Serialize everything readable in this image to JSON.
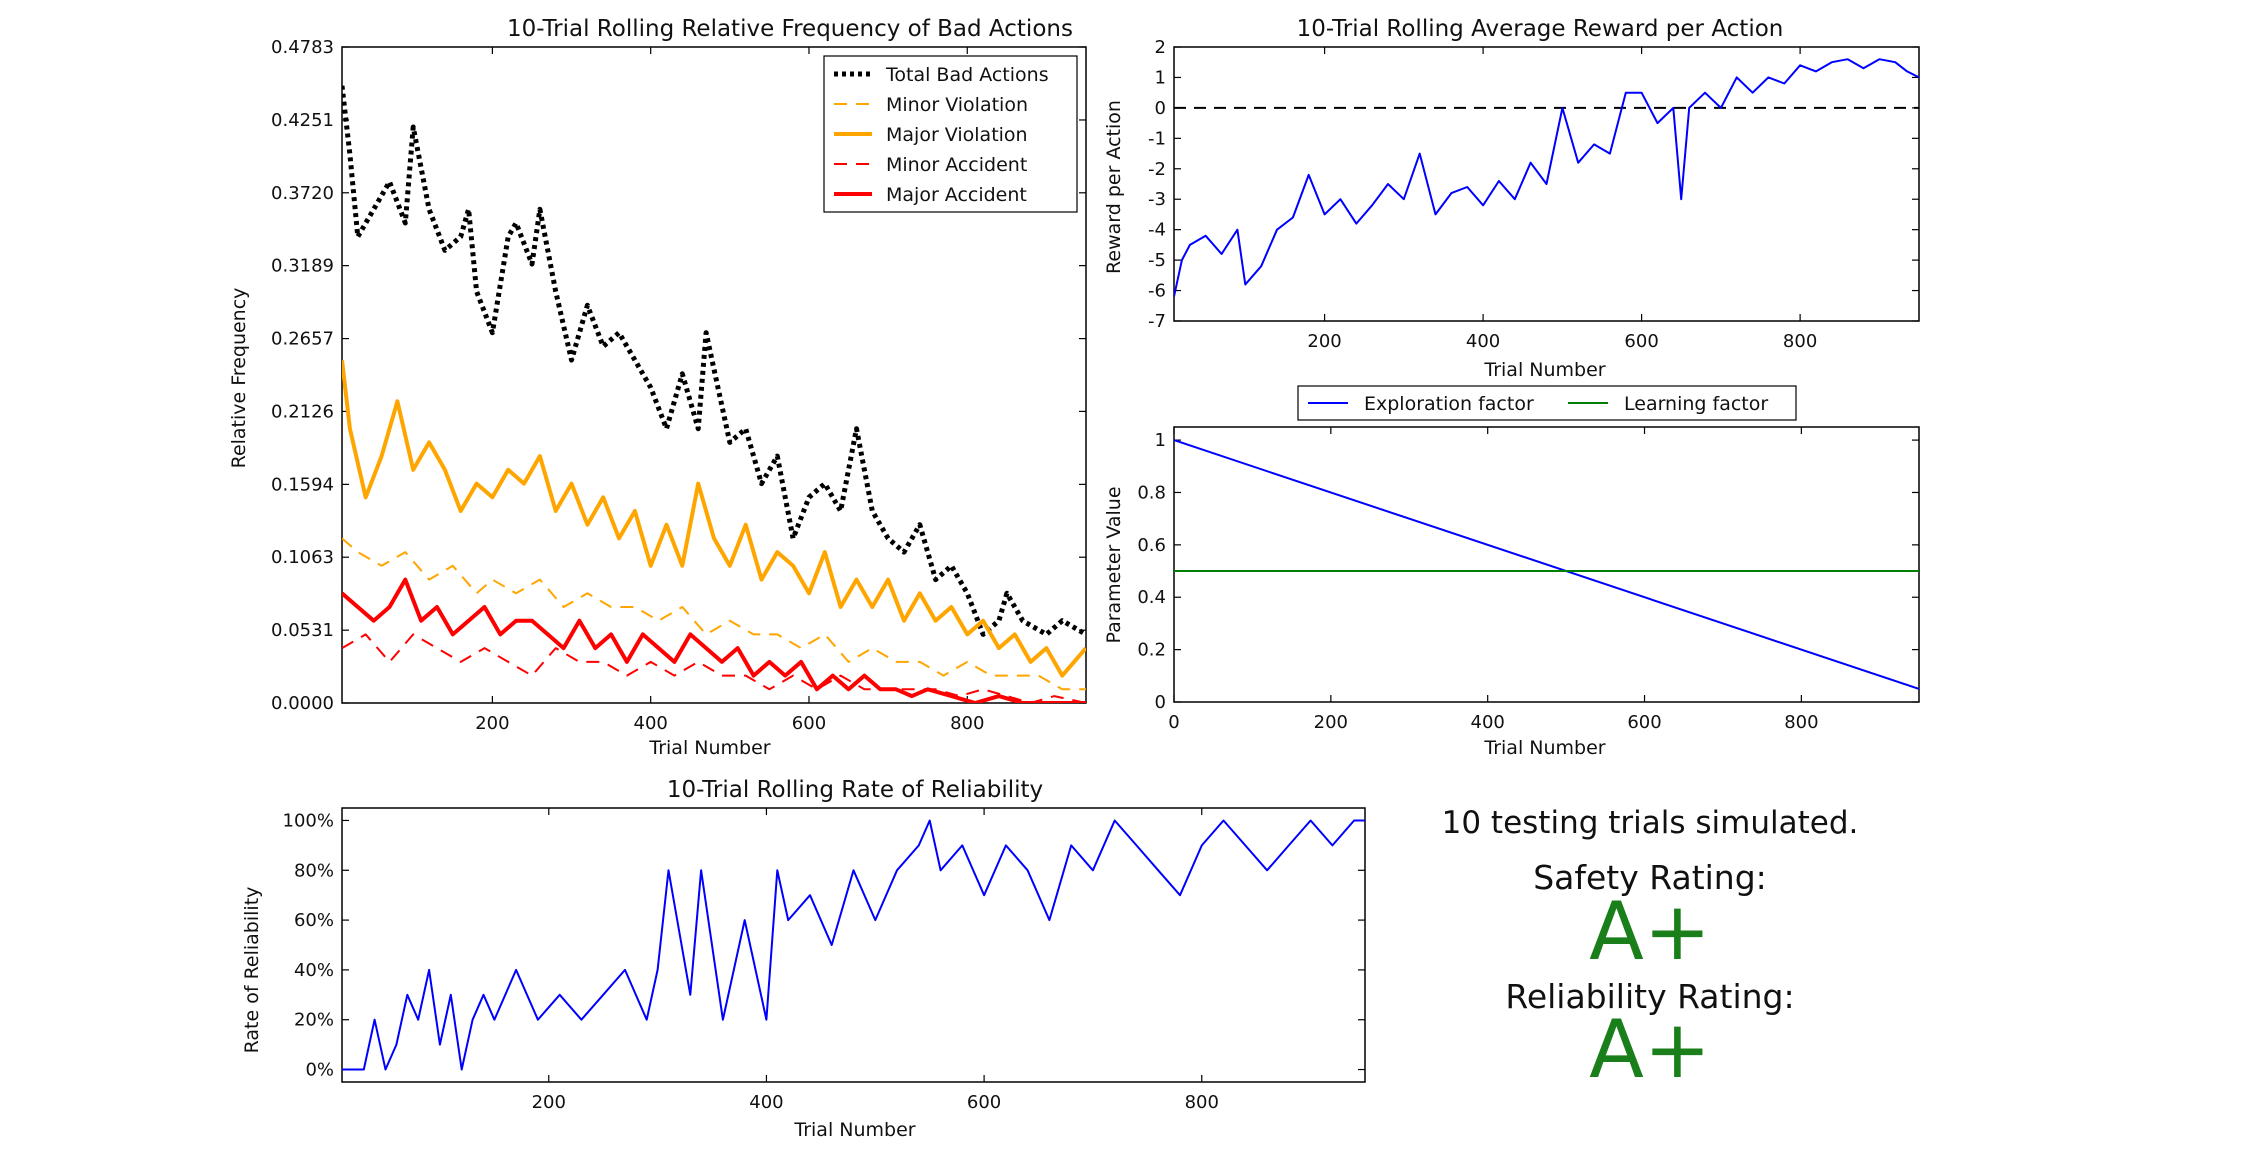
{
  "chart_data": [
    {
      "type": "line",
      "title": "10-Trial Rolling Relative Frequency of Bad Actions",
      "xlabel": "Trial Number",
      "ylabel": "Relative Frequency",
      "xlim": [
        10,
        950
      ],
      "ylim": [
        0.0,
        0.4783
      ],
      "xticks": [
        200,
        400,
        600,
        800
      ],
      "yticks": [
        0.0,
        0.0531,
        0.1063,
        0.1594,
        0.2126,
        0.2657,
        0.3189,
        0.372,
        0.4251,
        0.4783
      ],
      "ytick_labels": [
        "0.0000",
        "0.0531",
        "0.1063",
        "0.1594",
        "0.2126",
        "0.2657",
        "0.3189",
        "0.3720",
        "0.4251",
        "0.4783"
      ],
      "legend": "top-right",
      "series": [
        {
          "name": "Total Bad Actions",
          "color": "#000000",
          "style": "dotted",
          "x": [
            10,
            20,
            30,
            50,
            70,
            90,
            100,
            120,
            140,
            160,
            170,
            180,
            200,
            220,
            230,
            250,
            260,
            280,
            300,
            320,
            340,
            360,
            380,
            400,
            420,
            440,
            460,
            470,
            500,
            520,
            540,
            560,
            580,
            600,
            620,
            640,
            660,
            680,
            700,
            720,
            740,
            760,
            780,
            800,
            820,
            840,
            850,
            870,
            900,
            920,
            950
          ],
          "y": [
            0.45,
            0.4,
            0.34,
            0.36,
            0.38,
            0.35,
            0.42,
            0.36,
            0.33,
            0.34,
            0.36,
            0.3,
            0.27,
            0.34,
            0.35,
            0.32,
            0.36,
            0.3,
            0.25,
            0.29,
            0.26,
            0.27,
            0.25,
            0.23,
            0.2,
            0.24,
            0.2,
            0.27,
            0.19,
            0.2,
            0.16,
            0.18,
            0.12,
            0.15,
            0.16,
            0.14,
            0.2,
            0.14,
            0.12,
            0.11,
            0.13,
            0.09,
            0.1,
            0.08,
            0.05,
            0.06,
            0.08,
            0.06,
            0.05,
            0.06,
            0.05
          ]
        },
        {
          "name": "Minor Violation",
          "color": "#FFA500",
          "style": "dashed",
          "x": [
            10,
            30,
            60,
            90,
            120,
            150,
            180,
            200,
            230,
            260,
            290,
            320,
            350,
            380,
            410,
            440,
            470,
            500,
            530,
            560,
            590,
            620,
            650,
            680,
            710,
            740,
            770,
            800,
            830,
            860,
            890,
            920,
            950
          ],
          "y": [
            0.12,
            0.11,
            0.1,
            0.11,
            0.09,
            0.1,
            0.08,
            0.09,
            0.08,
            0.09,
            0.07,
            0.08,
            0.07,
            0.07,
            0.06,
            0.07,
            0.05,
            0.06,
            0.05,
            0.05,
            0.04,
            0.05,
            0.03,
            0.04,
            0.03,
            0.03,
            0.02,
            0.03,
            0.02,
            0.02,
            0.02,
            0.01,
            0.01
          ]
        },
        {
          "name": "Major Violation",
          "color": "#FFA500",
          "style": "solid",
          "x": [
            10,
            20,
            40,
            60,
            80,
            100,
            120,
            140,
            160,
            180,
            200,
            220,
            240,
            260,
            280,
            300,
            320,
            340,
            360,
            380,
            400,
            420,
            440,
            460,
            480,
            500,
            520,
            540,
            560,
            580,
            600,
            620,
            640,
            660,
            680,
            700,
            720,
            740,
            760,
            780,
            800,
            820,
            840,
            860,
            880,
            900,
            920,
            950
          ],
          "y": [
            0.25,
            0.2,
            0.15,
            0.18,
            0.22,
            0.17,
            0.19,
            0.17,
            0.14,
            0.16,
            0.15,
            0.17,
            0.16,
            0.18,
            0.14,
            0.16,
            0.13,
            0.15,
            0.12,
            0.14,
            0.1,
            0.13,
            0.1,
            0.16,
            0.12,
            0.1,
            0.13,
            0.09,
            0.11,
            0.1,
            0.08,
            0.11,
            0.07,
            0.09,
            0.07,
            0.09,
            0.06,
            0.08,
            0.06,
            0.07,
            0.05,
            0.06,
            0.04,
            0.05,
            0.03,
            0.04,
            0.02,
            0.04
          ]
        },
        {
          "name": "Minor Accident",
          "color": "#FF0000",
          "style": "dashed",
          "x": [
            10,
            40,
            70,
            100,
            130,
            160,
            190,
            220,
            250,
            280,
            310,
            340,
            370,
            400,
            430,
            460,
            490,
            520,
            550,
            580,
            610,
            640,
            670,
            700,
            730,
            760,
            790,
            820,
            850,
            880,
            910,
            950
          ],
          "y": [
            0.04,
            0.05,
            0.03,
            0.05,
            0.04,
            0.03,
            0.04,
            0.03,
            0.02,
            0.04,
            0.03,
            0.03,
            0.02,
            0.03,
            0.02,
            0.03,
            0.02,
            0.02,
            0.01,
            0.02,
            0.01,
            0.02,
            0.01,
            0.01,
            0.01,
            0.01,
            0.005,
            0.01,
            0.005,
            0.0,
            0.005,
            0.0
          ]
        },
        {
          "name": "Major Accident",
          "color": "#FF0000",
          "style": "solid",
          "x": [
            10,
            30,
            50,
            70,
            90,
            110,
            130,
            150,
            170,
            190,
            210,
            230,
            250,
            270,
            290,
            310,
            330,
            350,
            370,
            390,
            410,
            430,
            450,
            470,
            490,
            510,
            530,
            550,
            570,
            590,
            610,
            630,
            650,
            670,
            690,
            710,
            730,
            750,
            780,
            810,
            840,
            870,
            900,
            950
          ],
          "y": [
            0.08,
            0.07,
            0.06,
            0.07,
            0.09,
            0.06,
            0.07,
            0.05,
            0.06,
            0.07,
            0.05,
            0.06,
            0.06,
            0.05,
            0.04,
            0.06,
            0.04,
            0.05,
            0.03,
            0.05,
            0.04,
            0.03,
            0.05,
            0.04,
            0.03,
            0.04,
            0.02,
            0.03,
            0.02,
            0.03,
            0.01,
            0.02,
            0.01,
            0.02,
            0.01,
            0.01,
            0.005,
            0.01,
            0.005,
            0.0,
            0.005,
            0.0,
            0.0,
            0.0
          ]
        }
      ]
    },
    {
      "type": "line",
      "title": "10-Trial Rolling Average Reward per Action",
      "xlabel": "Trial Number",
      "ylabel": "Reward per Action",
      "xlim": [
        10,
        950
      ],
      "ylim": [
        -7,
        2
      ],
      "xticks": [
        200,
        400,
        600,
        800
      ],
      "yticks": [
        -7,
        -6,
        -5,
        -4,
        -3,
        -2,
        -1,
        0,
        1,
        2
      ],
      "reference_line": {
        "y": 0,
        "color": "#000000",
        "style": "dashed"
      },
      "series": [
        {
          "color": "#0000FF",
          "x": [
            10,
            20,
            30,
            50,
            70,
            90,
            100,
            120,
            140,
            160,
            180,
            200,
            220,
            240,
            260,
            280,
            300,
            320,
            340,
            360,
            380,
            400,
            420,
            440,
            460,
            480,
            500,
            520,
            540,
            560,
            580,
            600,
            620,
            640,
            650,
            660,
            680,
            700,
            720,
            740,
            760,
            780,
            800,
            820,
            840,
            860,
            880,
            900,
            920,
            935,
            950
          ],
          "y": [
            -6.2,
            -5.0,
            -4.5,
            -4.2,
            -4.8,
            -4.0,
            -5.8,
            -5.2,
            -4.0,
            -3.6,
            -2.2,
            -3.5,
            -3.0,
            -3.8,
            -3.2,
            -2.5,
            -3.0,
            -1.5,
            -3.5,
            -2.8,
            -2.6,
            -3.2,
            -2.4,
            -3.0,
            -1.8,
            -2.5,
            0.0,
            -1.8,
            -1.2,
            -1.5,
            0.5,
            0.5,
            -0.5,
            0.0,
            -3.0,
            0.0,
            0.5,
            0.0,
            1.0,
            0.5,
            1.0,
            0.8,
            1.4,
            1.2,
            1.5,
            1.6,
            1.3,
            1.6,
            1.5,
            1.2,
            1.0
          ]
        }
      ]
    },
    {
      "type": "line",
      "xlabel": "Trial Number",
      "ylabel": "Parameter Value",
      "xlim": [
        0,
        950
      ],
      "ylim": [
        0.0,
        1.05
      ],
      "xticks": [
        0,
        200,
        400,
        600,
        800
      ],
      "yticks": [
        0.0,
        0.2,
        0.4,
        0.6,
        0.8,
        1.0
      ],
      "legend": "top-center-outside",
      "series": [
        {
          "name": "Exploration factor",
          "color": "#0000FF",
          "x": [
            0,
            950
          ],
          "y": [
            1.0,
            0.05
          ]
        },
        {
          "name": "Learning factor",
          "color": "#008000",
          "x": [
            0,
            950
          ],
          "y": [
            0.5,
            0.5
          ]
        }
      ]
    },
    {
      "type": "line",
      "title": "10-Trial Rolling Rate of Reliability",
      "xlabel": "Trial Number",
      "ylabel": "Rate of Reliability",
      "xlim": [
        10,
        950
      ],
      "ylim": [
        -5,
        105
      ],
      "xticks": [
        200,
        400,
        600,
        800
      ],
      "yticks": [
        0,
        20,
        40,
        60,
        80,
        100
      ],
      "ytick_labels": [
        "0%",
        "20%",
        "40%",
        "60%",
        "80%",
        "100%"
      ],
      "series": [
        {
          "color": "#0000FF",
          "x": [
            10,
            30,
            40,
            50,
            60,
            70,
            80,
            90,
            100,
            110,
            120,
            130,
            140,
            150,
            170,
            190,
            210,
            230,
            250,
            270,
            290,
            300,
            310,
            330,
            340,
            360,
            380,
            400,
            410,
            420,
            440,
            460,
            480,
            500,
            520,
            540,
            550,
            560,
            580,
            600,
            620,
            640,
            660,
            680,
            700,
            720,
            740,
            760,
            780,
            800,
            820,
            840,
            860,
            880,
            900,
            920,
            940,
            950
          ],
          "y": [
            0,
            0,
            20,
            0,
            10,
            30,
            20,
            40,
            10,
            30,
            0,
            20,
            30,
            20,
            40,
            20,
            30,
            20,
            30,
            40,
            20,
            40,
            80,
            30,
            80,
            20,
            60,
            20,
            80,
            60,
            70,
            50,
            80,
            60,
            80,
            90,
            100,
            80,
            90,
            70,
            90,
            80,
            60,
            90,
            80,
            100,
            90,
            80,
            70,
            90,
            100,
            90,
            80,
            90,
            100,
            90,
            100,
            100
          ]
        }
      ]
    }
  ],
  "summary": {
    "trials_text": "10 testing trials simulated.",
    "safety_label": "Safety Rating:",
    "safety_grade": "A+",
    "reliability_label": "Reliability Rating:",
    "reliability_grade": "A+",
    "grade_color": "#1a7f1a"
  }
}
